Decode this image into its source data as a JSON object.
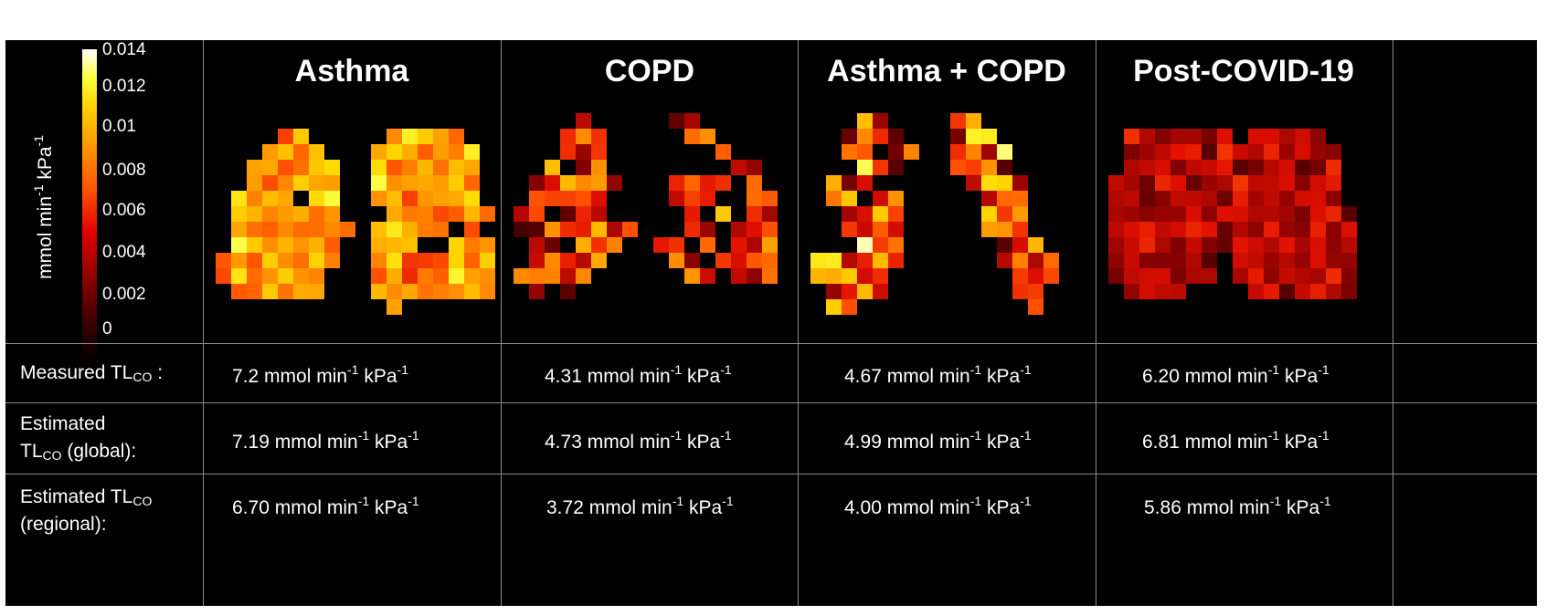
{
  "colorbar": {
    "label_text": "mmol min",
    "label_sup1": "-1",
    "label_mid": " kPa",
    "label_sup2": "-1",
    "ticks": [
      "0.014",
      "0.012",
      "0.01",
      "0.008",
      "0.006",
      "0.004",
      "0.002",
      "0"
    ],
    "range": [
      0,
      0.014
    ]
  },
  "columns": [
    {
      "title": "Asthma",
      "measured": "7.2",
      "global": "7.19",
      "regional": "6.70"
    },
    {
      "title": "COPD",
      "measured": "4.31",
      "global": "4.73",
      "regional": "3.72"
    },
    {
      "title": "Asthma + COPD",
      "measured": "4.67",
      "global": "4.99",
      "regional": "4.00"
    },
    {
      "title": "Post-COVID-19",
      "measured": "6.20",
      "global": "6.81",
      "regional": "5.86"
    }
  ],
  "units": {
    "a": " mmol min",
    "sup1": "-1",
    "b": " kPa",
    "sup2": "-1"
  },
  "rows": {
    "measured": {
      "pre": "Measured TL",
      "sub": "CO",
      "post": " :"
    },
    "global": {
      "line1": "Estimated",
      "pre": "TL",
      "sub": "CO",
      "post": " (global):"
    },
    "regional": {
      "pre": "Estimated TL",
      "sub": "CO",
      "line2": "(regional):"
    }
  },
  "colors": {
    "background": "#000000",
    "grid": "#8a8a8a",
    "text": "#ffffff"
  }
}
